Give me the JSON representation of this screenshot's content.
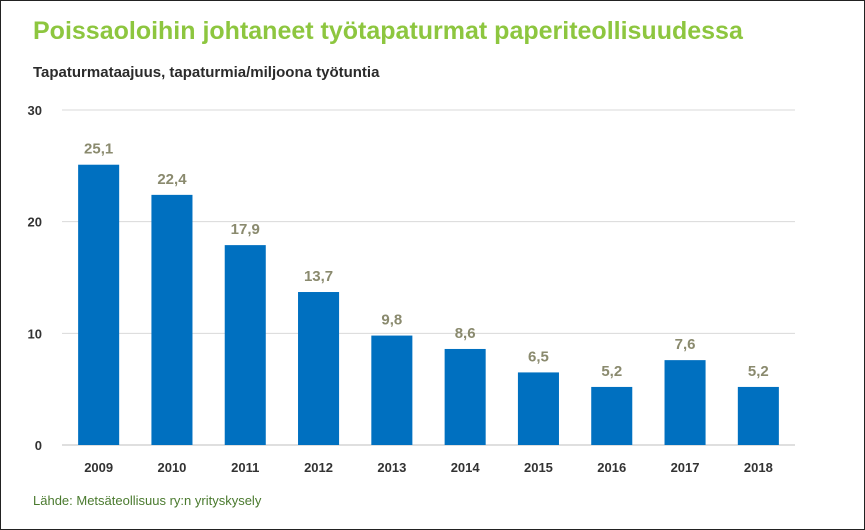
{
  "header": {
    "title": "Poissaoloihin johtaneet työtapaturmat paperiteollisuudessa",
    "subtitle": "Tapaturmataajuus, tapaturmia/miljoona työtuntia"
  },
  "footer": {
    "source": "Lähde: Metsäteollisuus ry:n yrityskysely"
  },
  "colors": {
    "title": "#8dc63f",
    "bar": "#0070c0",
    "data_label": "#8a8a6e",
    "grid": "#d9d9d9"
  },
  "chart_data": {
    "type": "bar",
    "title": "Poissaoloihin johtaneet työtapaturmat paperiteollisuudessa",
    "ylabel": "Tapaturmataajuus, tapaturmia/miljoona työtuntia",
    "xlabel": "",
    "categories": [
      "2009",
      "2010",
      "2011",
      "2012",
      "2013",
      "2014",
      "2015",
      "2016",
      "2017",
      "2018"
    ],
    "values": [
      25.1,
      22.4,
      17.9,
      13.7,
      9.8,
      8.6,
      6.5,
      5.2,
      7.6,
      5.2
    ],
    "data_labels": [
      "25,1",
      "22,4",
      "17,9",
      "13,7",
      "9,8",
      "8,6",
      "6,5",
      "5,2",
      "7,6",
      "5,2"
    ],
    "ylim": [
      0,
      30
    ],
    "yticks": [
      0,
      10,
      20,
      30
    ],
    "grid": true,
    "legend": "none"
  }
}
